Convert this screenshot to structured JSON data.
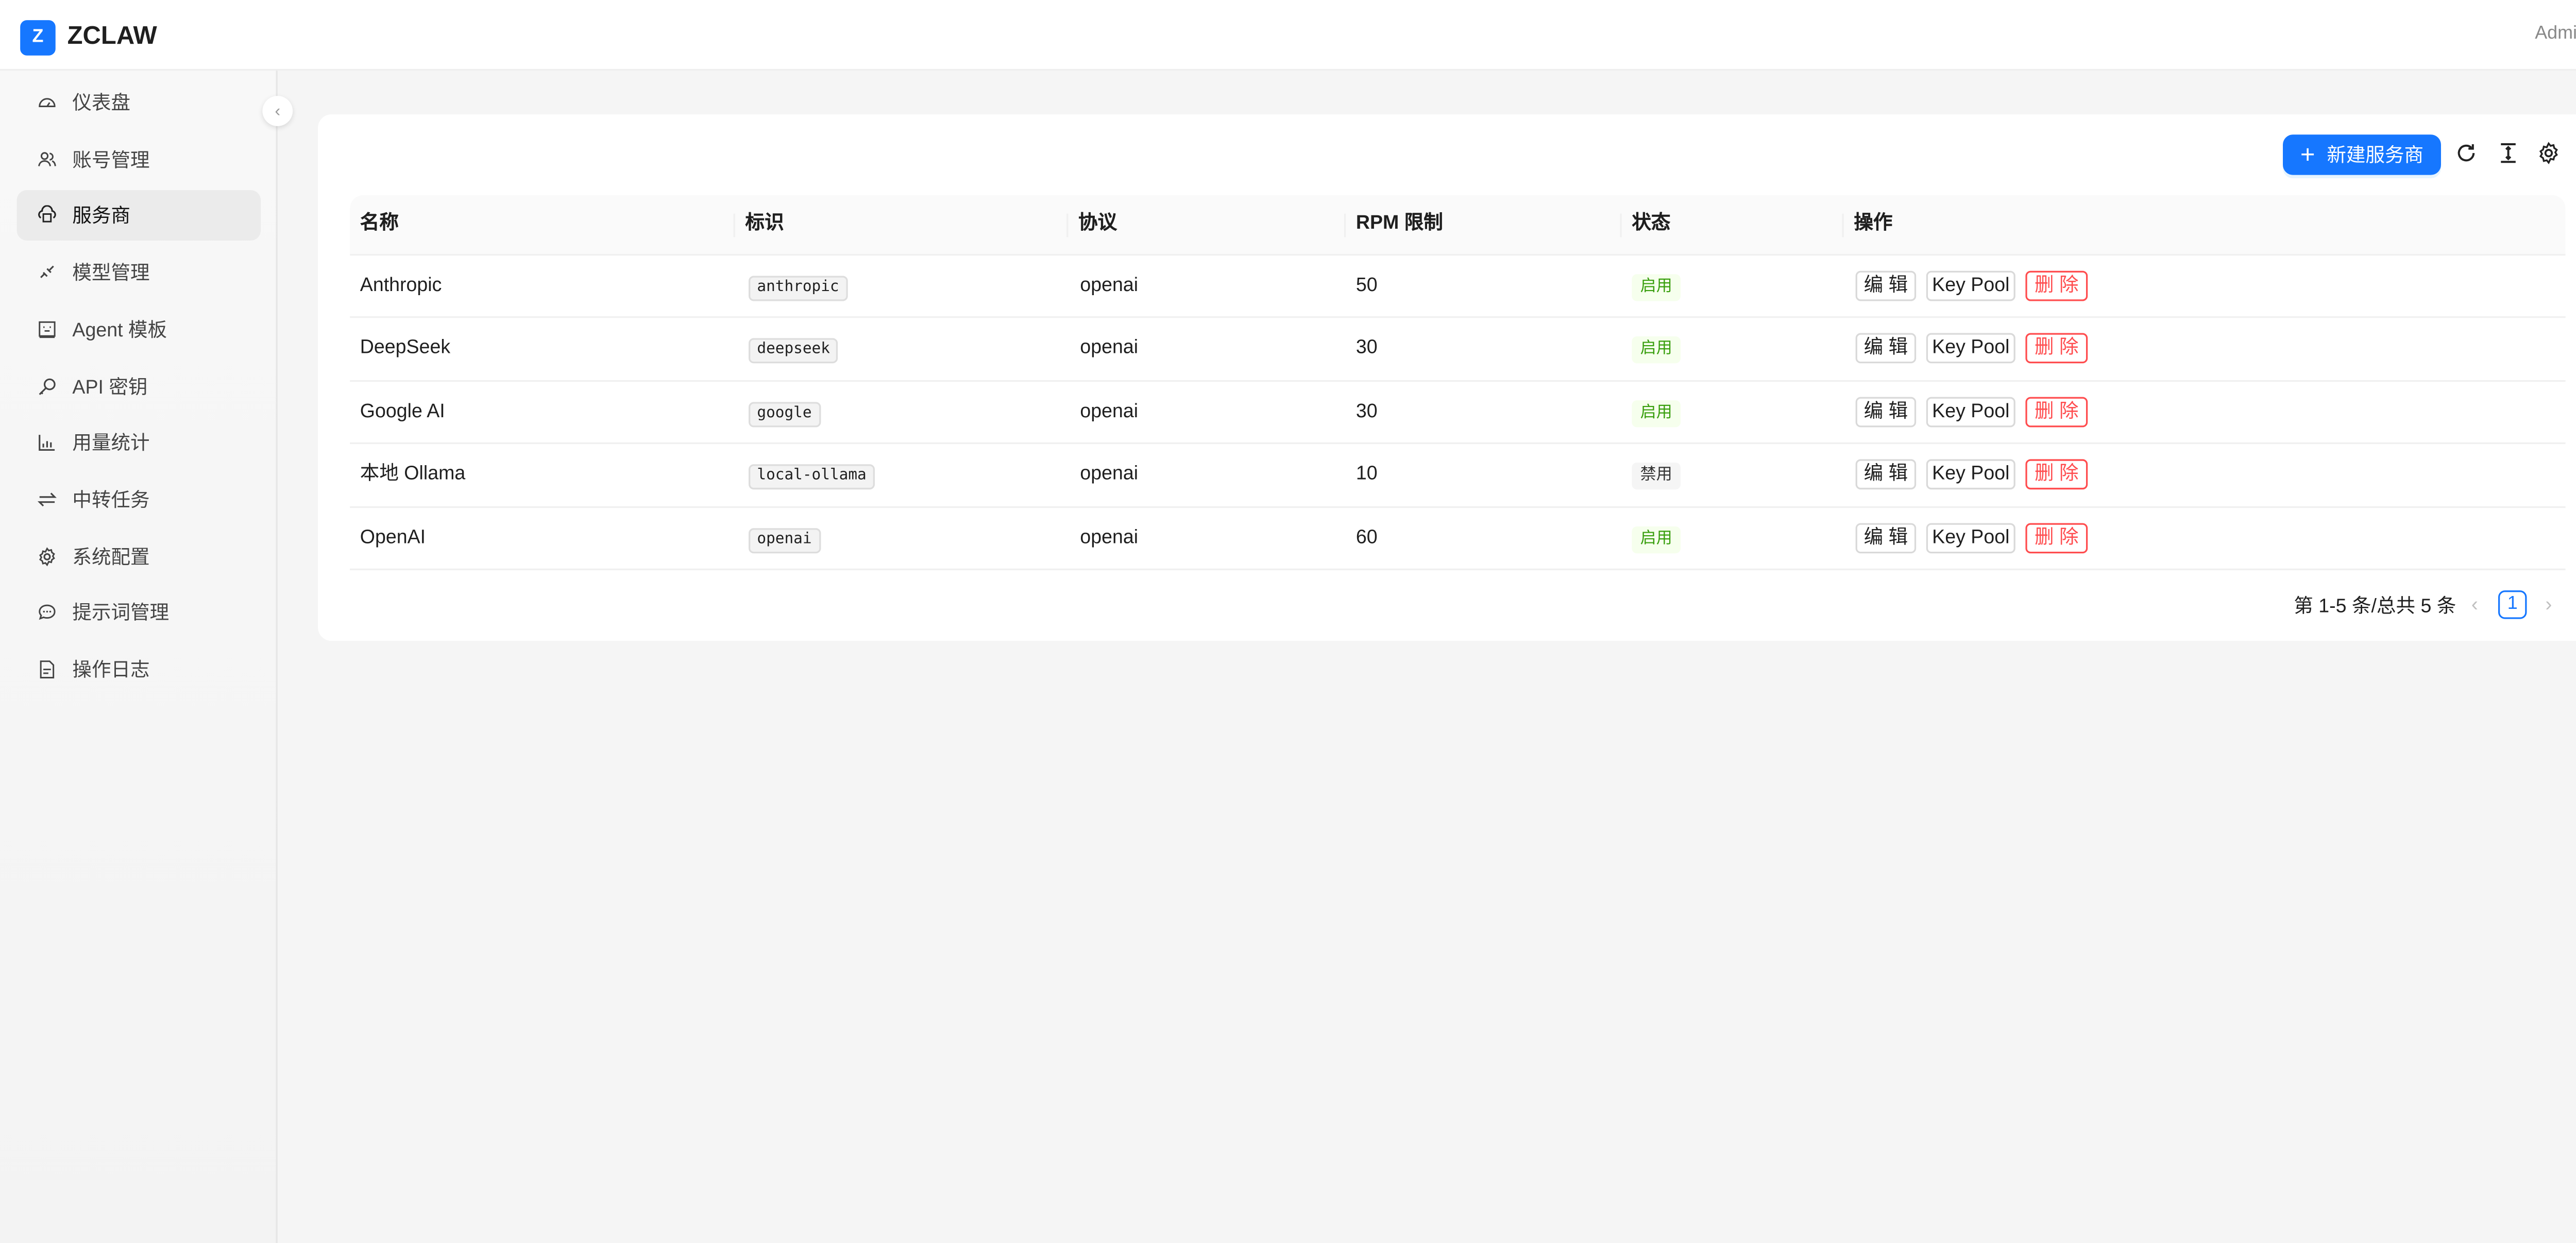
{
  "header": {
    "logo_letter": "Z",
    "brand": "ZCLAW",
    "user": "Admin"
  },
  "sidebar": {
    "items": [
      {
        "label": "仪表盘",
        "icon": "dashboard-icon"
      },
      {
        "label": "账号管理",
        "icon": "users-icon"
      },
      {
        "label": "服务商",
        "icon": "cloud-server-icon",
        "active": true
      },
      {
        "label": "模型管理",
        "icon": "api-link-icon"
      },
      {
        "label": "Agent 模板",
        "icon": "template-icon"
      },
      {
        "label": "API 密钥",
        "icon": "key-icon"
      },
      {
        "label": "用量统计",
        "icon": "bar-chart-icon"
      },
      {
        "label": "中转任务",
        "icon": "swap-icon"
      },
      {
        "label": "系统配置",
        "icon": "gear-icon"
      },
      {
        "label": "提示词管理",
        "icon": "message-icon"
      },
      {
        "label": "操作日志",
        "icon": "file-icon"
      }
    ]
  },
  "toolbar": {
    "new_label": "新建服务商",
    "new_icon": "+"
  },
  "table": {
    "columns": [
      "名称",
      "标识",
      "协议",
      "RPM 限制",
      "状态",
      "操作"
    ],
    "rows": [
      {
        "name": "Anthropic",
        "id": "anthropic",
        "protocol": "openai",
        "rpm": "50",
        "status": "启用",
        "enabled": true
      },
      {
        "name": "DeepSeek",
        "id": "deepseek",
        "protocol": "openai",
        "rpm": "30",
        "status": "启用",
        "enabled": true
      },
      {
        "name": "Google AI",
        "id": "google",
        "protocol": "openai",
        "rpm": "30",
        "status": "启用",
        "enabled": true
      },
      {
        "name": "本地 Ollama",
        "id": "local-ollama",
        "protocol": "openai",
        "rpm": "10",
        "status": "禁用",
        "enabled": false
      },
      {
        "name": "OpenAI",
        "id": "openai",
        "protocol": "openai",
        "rpm": "60",
        "status": "启用",
        "enabled": true
      }
    ],
    "actions": {
      "edit": "编 辑",
      "keypool": "Key Pool",
      "delete": "删 除"
    }
  },
  "pagination": {
    "summary": "第 1-5 条/总共 5 条",
    "current": "1",
    "prev": "‹",
    "next": "›"
  },
  "colors": {
    "primary": "#1677ff",
    "danger": "#ff4d4f",
    "success": "#389e0d"
  }
}
